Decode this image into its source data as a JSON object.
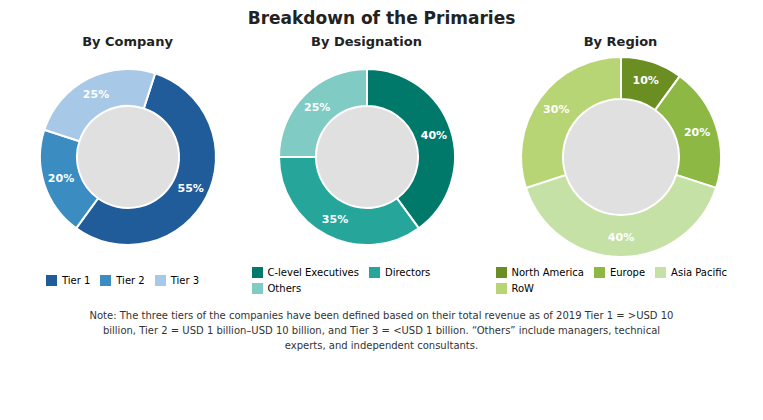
{
  "title": "Breakdown of the Primaries",
  "note": "Note: The three tiers of the companies have been defined based on their total revenue as of 2019 Tier 1 = >USD 10\nbillion, Tier 2 = USD 1 billion–USD 10 billion, and Tier 3 = <USD 1 billion. “Others” include managers, technical\nexperts, and independent consultants.",
  "chart_data": [
    {
      "type": "donut",
      "title": "By Company",
      "categories": [
        "Tier 1",
        "Tier 2",
        "Tier 3"
      ],
      "values": [
        55,
        20,
        25
      ],
      "value_labels": [
        "55%",
        "20%",
        "25%"
      ],
      "colors": [
        "#1F5C99",
        "#3A8CC1",
        "#A8C8E8"
      ],
      "data_labels": true,
      "legend": "bottom"
    },
    {
      "type": "donut",
      "title": "By Designation",
      "categories": [
        "C-level Executives",
        "Directors",
        "Others"
      ],
      "values": [
        40,
        35,
        25
      ],
      "value_labels": [
        "40%",
        "35%",
        "25%"
      ],
      "colors": [
        "#00796B",
        "#26A69A",
        "#80CBC4"
      ],
      "data_labels": true,
      "legend": "bottom"
    },
    {
      "type": "donut",
      "title": "By Region",
      "categories": [
        "North America",
        "Europe",
        "Asia Pacific",
        "RoW"
      ],
      "values": [
        10,
        20,
        40,
        30
      ],
      "value_labels": [
        "10%",
        "20%",
        "40%",
        "30%"
      ],
      "colors": [
        "#6B8E23",
        "#8DB843",
        "#C5E1A5",
        "#B8D575"
      ],
      "data_labels": true,
      "legend": "bottom"
    }
  ]
}
